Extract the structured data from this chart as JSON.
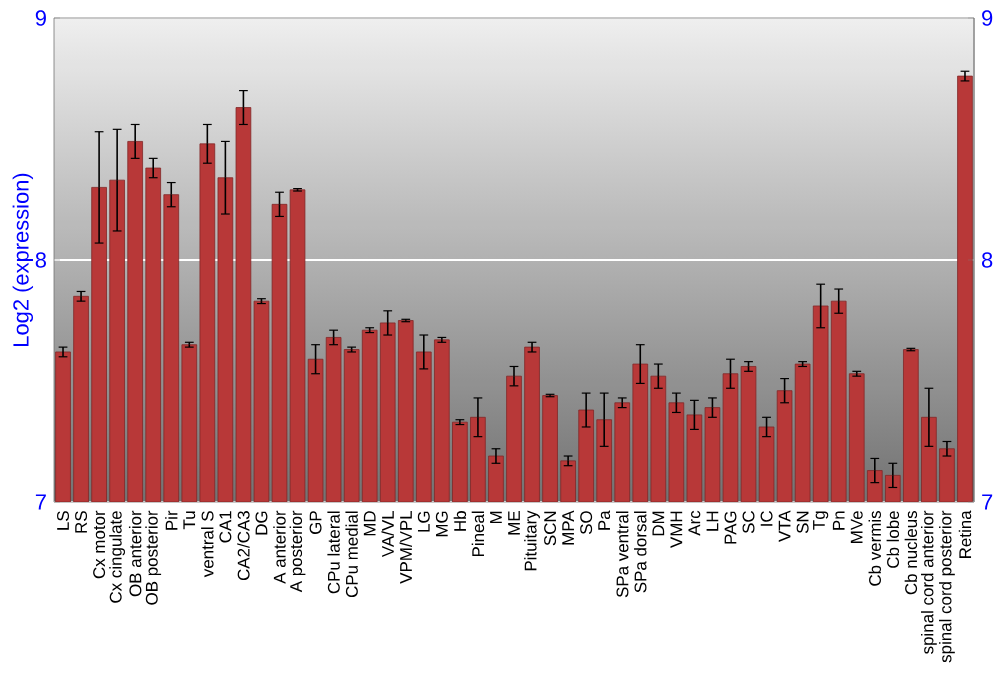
{
  "chart_data": {
    "type": "bar",
    "ylabel": "Log2 (expression)",
    "categories": [
      "LS",
      "RS",
      "Cx motor",
      "Cx cingulate",
      "OB anterior",
      "OB posterior",
      "Pir",
      "Tu",
      "ventral S",
      "CA1",
      "CA2/CA3",
      "DG",
      "A anterior",
      "A posterior",
      "GP",
      "CPu lateral",
      "CPu medial",
      "MD",
      "VA/VL",
      "VPM/VPL",
      "LG",
      "MG",
      "Hb",
      "Pineal",
      "M",
      "ME",
      "Pituitary",
      "SCN",
      "MPA",
      "SO",
      "Pa",
      "SPa ventral",
      "SPa dorsal",
      "DM",
      "VMH",
      "Arc",
      "LH",
      "PAG",
      "SC",
      "IC",
      "VTA",
      "SN",
      "Tg",
      "Pn",
      "MVe",
      "Cb vermis",
      "Cb lobe",
      "Cb nucleus",
      "spinal cord anterior",
      "spinal cord posterior",
      "Retina"
    ],
    "values": [
      7.62,
      7.85,
      8.3,
      8.33,
      8.49,
      8.38,
      8.27,
      7.65,
      8.48,
      8.34,
      8.63,
      7.83,
      8.23,
      8.29,
      7.59,
      7.68,
      7.63,
      7.71,
      7.74,
      7.75,
      7.62,
      7.67,
      7.33,
      7.35,
      7.19,
      7.52,
      7.64,
      7.44,
      7.17,
      7.38,
      7.34,
      7.41,
      7.57,
      7.52,
      7.41,
      7.36,
      7.39,
      7.53,
      7.56,
      7.31,
      7.46,
      7.57,
      7.81,
      7.83,
      7.53,
      7.13,
      7.11,
      7.63,
      7.35,
      7.22,
      8.76
    ],
    "errors": [
      0.02,
      0.02,
      0.23,
      0.21,
      0.07,
      0.04,
      0.05,
      0.01,
      0.08,
      0.15,
      0.07,
      0.01,
      0.05,
      0.005,
      0.06,
      0.03,
      0.01,
      0.01,
      0.05,
      0.005,
      0.07,
      0.01,
      0.01,
      0.08,
      0.03,
      0.04,
      0.02,
      0.005,
      0.02,
      0.07,
      0.11,
      0.02,
      0.08,
      0.05,
      0.04,
      0.06,
      0.04,
      0.06,
      0.02,
      0.04,
      0.05,
      0.01,
      0.09,
      0.05,
      0.01,
      0.05,
      0.05,
      0.005,
      0.12,
      0.03,
      0.02
    ],
    "color": "#b83838",
    "ylim": [
      7,
      9
    ],
    "yticks": [
      7,
      8,
      9
    ],
    "y2lim": [
      7,
      9
    ],
    "y2ticks": [
      7,
      8,
      9
    ],
    "grid": "y"
  }
}
